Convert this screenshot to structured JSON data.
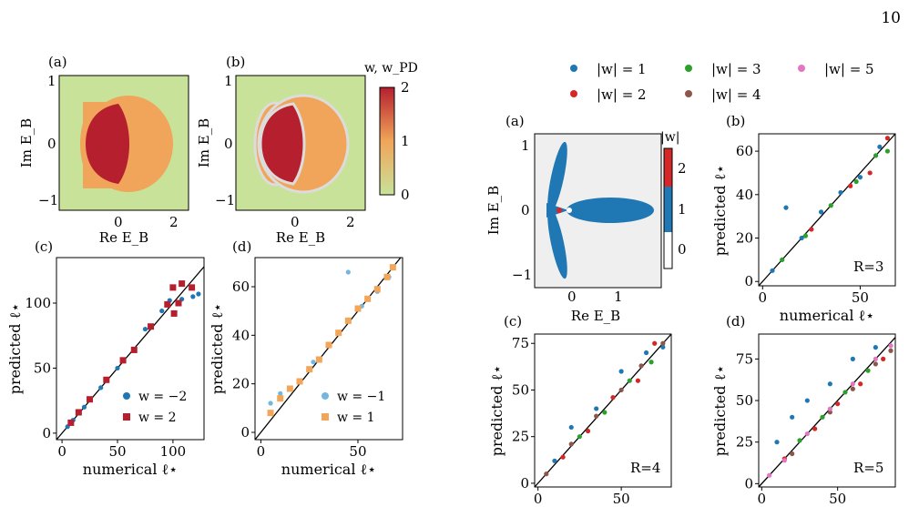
{
  "page_number": "10",
  "colors": {
    "green": "#c8e29a",
    "orange": "#f0a55a",
    "red": "#b51f2e",
    "grey": "#dcdcdc",
    "blue": "#1f77b4",
    "c_red": "#d62728",
    "c_green": "#2ca02c",
    "c_brown": "#8c564b",
    "c_pink": "#e377c2",
    "lightblue": "#74b6e0",
    "sq_orange": "#f2a65a",
    "bg_grey": "#efefef"
  },
  "left_figure": {
    "panel_a": {
      "label": "(a)"
    },
    "panel_b": {
      "label": "(b)"
    },
    "colorbar": {
      "title": "w, w_PD",
      "ticks": [
        "0",
        "1",
        "2"
      ]
    },
    "xlabel": "Re E_B",
    "ylabel": "Im E_B",
    "map_xticks": [
      "0",
      "2"
    ],
    "map_yticks": [
      "−1",
      "0",
      "1"
    ],
    "panel_c": {
      "label": "(c)",
      "legend": [
        "w = −2",
        "w = 2"
      ]
    },
    "panel_d": {
      "label": "(d)",
      "legend": [
        "w = −1",
        "w = 1"
      ]
    },
    "scatter_xlabel": "numerical ℓ⋆",
    "scatter_ylabel": "predicted ℓ⋆"
  },
  "right_figure": {
    "legend": [
      "|w| = 1",
      "|w| = 2",
      "|w| = 3",
      "|w| = 4",
      "|w| = 5"
    ],
    "panel_a": {
      "label": "(a)",
      "colorbar_title": "|w|",
      "colorbar_ticks": [
        "0",
        "1",
        "2"
      ]
    },
    "panel_b": {
      "label": "(b)",
      "annotation": "R=3"
    },
    "panel_c": {
      "label": "(c)",
      "annotation": "R=4"
    },
    "panel_d": {
      "label": "(d)",
      "annotation": "R=5"
    },
    "xlabel": "Re E_B",
    "ylabel": "Im E_B",
    "scatter_xlabel": "numerical ℓ⋆",
    "scatter_ylabel": "predicted ℓ⋆"
  },
  "chart_data": [
    {
      "type": "heatmap",
      "panel": "left-(a)",
      "xlabel": "Re E_B",
      "ylabel": "Im E_B",
      "xlim": [
        -1.8,
        2.4
      ],
      "ylim": [
        -1.25,
        1.15
      ],
      "xticks": [
        0,
        2
      ],
      "yticks": [
        -1,
        0,
        1
      ],
      "values_legend": {
        "0": "green",
        "1": "orange",
        "2": "red"
      }
    },
    {
      "type": "heatmap",
      "panel": "left-(b)",
      "xlabel": "Re E_B",
      "ylabel": "Im E_B",
      "xlim": [
        -1.8,
        2.4
      ],
      "ylim": [
        -1.25,
        1.15
      ],
      "xticks": [
        0,
        2
      ],
      "yticks": [
        -1,
        0,
        1
      ],
      "colorbar": {
        "title": "w, w_PD",
        "range": [
          0,
          2
        ],
        "ticks": [
          0,
          1,
          2
        ]
      }
    },
    {
      "type": "scatter",
      "panel": "left-(c)",
      "xlabel": "numerical ℓ⋆",
      "ylabel": "predicted ℓ⋆",
      "xlim": [
        -5,
        128
      ],
      "ylim": [
        -5,
        135
      ],
      "xticks": [
        0,
        50,
        100
      ],
      "yticks": [
        0,
        50,
        100
      ],
      "diagonal": true,
      "series": [
        {
          "name": "w = −2",
          "points": [
            [
              5,
              5
            ],
            [
              10,
              10
            ],
            [
              20,
              20
            ],
            [
              35,
              35
            ],
            [
              50,
              50
            ],
            [
              75,
              80
            ],
            [
              90,
              94
            ],
            [
              97,
              102
            ],
            [
              108,
              103
            ],
            [
              118,
              105
            ],
            [
              123,
              107
            ]
          ]
        },
        {
          "name": "w = 2",
          "points": [
            [
              8,
              8
            ],
            [
              15,
              16
            ],
            [
              25,
              26
            ],
            [
              40,
              41
            ],
            [
              55,
              56
            ],
            [
              65,
              64
            ],
            [
              80,
              82
            ],
            [
              95,
              99
            ],
            [
              100,
              112
            ],
            [
              108,
              115
            ],
            [
              101,
              92
            ],
            [
              105,
              100
            ],
            [
              117,
              112
            ]
          ]
        }
      ]
    },
    {
      "type": "scatter",
      "panel": "left-(d)",
      "xlabel": "numerical ℓ⋆",
      "ylabel": "predicted ℓ⋆",
      "xlim": [
        -3,
        73
      ],
      "ylim": [
        -3,
        72
      ],
      "xticks": [
        0,
        50
      ],
      "yticks": [
        0,
        20,
        40,
        60
      ],
      "diagonal": true,
      "series": [
        {
          "name": "w = −1",
          "points": [
            [
              5,
              12
            ],
            [
              10,
              16
            ],
            [
              27,
              29
            ],
            [
              45,
              66
            ],
            [
              52,
              52
            ],
            [
              60,
              58
            ],
            [
              66,
              64
            ]
          ]
        },
        {
          "name": "w = 1",
          "points": [
            [
              5,
              8
            ],
            [
              10,
              14
            ],
            [
              15,
              18
            ],
            [
              20,
              21
            ],
            [
              25,
              26
            ],
            [
              30,
              30
            ],
            [
              35,
              36
            ],
            [
              40,
              41
            ],
            [
              45,
              46
            ],
            [
              50,
              51
            ],
            [
              55,
              55
            ],
            [
              60,
              59
            ],
            [
              65,
              64
            ],
            [
              68,
              68
            ]
          ]
        }
      ]
    },
    {
      "type": "heatmap",
      "panel": "right-(a)",
      "xlabel": "Re E_B",
      "ylabel": "Im E_B",
      "xlim": [
        -0.8,
        1.9
      ],
      "ylim": [
        -1.15,
        1.15
      ],
      "xticks": [
        0,
        1
      ],
      "yticks": [
        -1,
        0,
        1
      ],
      "colorbar": {
        "title": "|w|",
        "ticks": [
          0,
          1,
          2
        ]
      }
    },
    {
      "type": "scatter",
      "panel": "right-(b)",
      "annotation": "R=3",
      "xlabel": "numerical ℓ⋆",
      "ylabel": "predicted ℓ⋆",
      "xlim": [
        -2,
        68
      ],
      "ylim": [
        -2,
        68
      ],
      "xticks": [
        0,
        50
      ],
      "yticks": [
        0,
        20,
        40,
        60
      ],
      "diagonal": true,
      "series": [
        {
          "name": "|w| = 1",
          "points": [
            [
              5,
              5
            ],
            [
              12,
              34
            ],
            [
              20,
              20
            ],
            [
              30,
              32
            ],
            [
              40,
              41
            ],
            [
              50,
              48
            ],
            [
              60,
              62
            ]
          ]
        },
        {
          "name": "|w| = 2",
          "points": [
            [
              25,
              24
            ],
            [
              45,
              44
            ],
            [
              55,
              50
            ],
            [
              64,
              66
            ]
          ]
        },
        {
          "name": "|w| = 3",
          "points": [
            [
              10,
              10
            ],
            [
              22,
              21
            ],
            [
              35,
              35
            ],
            [
              48,
              46
            ],
            [
              58,
              58
            ],
            [
              64,
              60
            ]
          ]
        }
      ]
    },
    {
      "type": "scatter",
      "panel": "right-(c)",
      "annotation": "R=4",
      "xlabel": "numerical ℓ⋆",
      "ylabel": "predicted ℓ⋆",
      "xlim": [
        -2,
        80
      ],
      "ylim": [
        -2,
        80
      ],
      "xticks": [
        0,
        50
      ],
      "yticks": [
        0,
        25,
        50,
        75
      ],
      "diagonal": true,
      "series": [
        {
          "name": "|w| = 1",
          "points": [
            [
              10,
              12
            ],
            [
              20,
              30
            ],
            [
              35,
              40
            ],
            [
              50,
              60
            ],
            [
              65,
              70
            ],
            [
              75,
              73
            ]
          ]
        },
        {
          "name": "|w| = 2",
          "points": [
            [
              15,
              14
            ],
            [
              30,
              28
            ],
            [
              45,
              46
            ],
            [
              60,
              55
            ],
            [
              70,
              75
            ]
          ]
        },
        {
          "name": "|w| = 3",
          "points": [
            [
              25,
              25
            ],
            [
              40,
              38
            ],
            [
              55,
              55
            ],
            [
              68,
              65
            ]
          ]
        },
        {
          "name": "|w| = 4",
          "points": [
            [
              5,
              5
            ],
            [
              20,
              21
            ],
            [
              35,
              36
            ],
            [
              50,
              50
            ],
            [
              62,
              63
            ],
            [
              75,
              75
            ]
          ]
        }
      ]
    },
    {
      "type": "scatter",
      "panel": "right-(d)",
      "annotation": "R=5",
      "xlabel": "numerical ℓ⋆",
      "ylabel": "predicted ℓ⋆",
      "xlim": [
        -2,
        88
      ],
      "ylim": [
        -2,
        90
      ],
      "xticks": [
        0,
        50
      ],
      "yticks": [
        0,
        25,
        50,
        75
      ],
      "diagonal": true,
      "series": [
        {
          "name": "|w| = 1",
          "points": [
            [
              10,
              25
            ],
            [
              20,
              40
            ],
            [
              30,
              50
            ],
            [
              45,
              60
            ],
            [
              60,
              75
            ],
            [
              75,
              82
            ]
          ]
        },
        {
          "name": "|w| = 2",
          "points": [
            [
              15,
              15
            ],
            [
              35,
              33
            ],
            [
              50,
              48
            ],
            [
              65,
              60
            ],
            [
              80,
              75
            ]
          ]
        },
        {
          "name": "|w| = 3",
          "points": [
            [
              25,
              26
            ],
            [
              40,
              40
            ],
            [
              55,
              55
            ],
            [
              70,
              68
            ]
          ]
        },
        {
          "name": "|w| = 4",
          "points": [
            [
              20,
              18
            ],
            [
              45,
              43
            ],
            [
              60,
              57
            ],
            [
              75,
              72
            ],
            [
              85,
              80
            ]
          ]
        },
        {
          "name": "|w| = 5",
          "points": [
            [
              5,
              5
            ],
            [
              15,
              14
            ],
            [
              30,
              30
            ],
            [
              45,
              45
            ],
            [
              60,
              60
            ],
            [
              75,
              75
            ],
            [
              85,
              83
            ]
          ]
        }
      ]
    }
  ]
}
